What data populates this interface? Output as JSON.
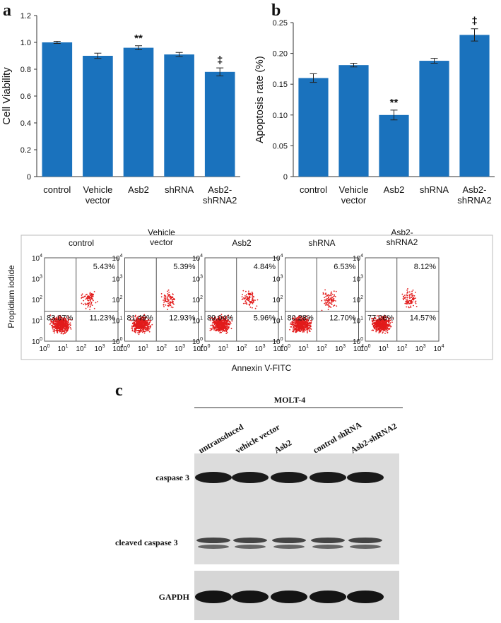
{
  "chart_data": [
    {
      "type": "bar",
      "panel": "a",
      "ylabel": "Cell Viability",
      "color": "#1a72bd",
      "categories": [
        "control",
        "Vehicle\nvector",
        "Asb2",
        "shRNA",
        "Asb2-\nshRNA2"
      ],
      "values": [
        1.0,
        0.9,
        0.96,
        0.91,
        0.78
      ],
      "errors": [
        0.008,
        0.02,
        0.015,
        0.015,
        0.03
      ],
      "annotations": [
        null,
        null,
        "**",
        null,
        "‡"
      ],
      "ylim": [
        0,
        1.2
      ],
      "yticks": [
        0,
        0.2,
        0.4,
        0.6,
        0.8,
        {
          "value": 1,
          "label": "1.0"
        },
        1.2
      ]
    },
    {
      "type": "bar",
      "panel": "b",
      "ylabel": "Apoptosis rate (%)",
      "color": "#1a72bd",
      "categories": [
        "control",
        "Vehicle\nvector",
        "Asb2",
        "shRNA",
        "Asb2-\nshRNA2"
      ],
      "values": [
        0.16,
        0.181,
        0.1,
        0.188,
        0.23
      ],
      "errors": [
        0.007,
        0.003,
        0.008,
        0.004,
        0.01
      ],
      "annotations": [
        null,
        null,
        "**",
        null,
        "‡"
      ],
      "ylim": [
        0,
        0.25
      ],
      "yticks": [
        0,
        0.05,
        {
          "value": 0.1,
          "label": "0.10"
        },
        0.15,
        {
          "value": 0.2,
          "label": "0.20"
        },
        0.25
      ]
    }
  ],
  "flow": {
    "ylabel": "Propidium iodide",
    "xlabel": "Annexin V-FITC",
    "tick_base": "10",
    "tick_exponents": [
      0,
      1,
      2,
      3,
      4
    ],
    "plots": [
      {
        "title": "control",
        "ul": null,
        "ur": "5.43%",
        "ll": "83.07%",
        "lr": "11.23%"
      },
      {
        "title": "Vehicle\nvector",
        "ul": null,
        "ur": "5.39%",
        "ll": "81.49%",
        "lr": "12.93%"
      },
      {
        "title": "Asb2",
        "ul": null,
        "ur": "4.84%",
        "ll": "89.04%",
        "lr": "5.96%"
      },
      {
        "title": "shRNA",
        "ul": null,
        "ur": "6.53%",
        "ll": "80.28%",
        "lr": "12.70%"
      },
      {
        "title": "Asb2-\nshRNA2",
        "ul": null,
        "ur": "8.12%",
        "ll": "77.06%",
        "lr": "14.57%"
      }
    ]
  },
  "blot": {
    "panel": "c",
    "cell_line": "MOLT-4",
    "lanes": [
      "untransduced",
      "vehicle vector",
      "Asb2",
      "control shRNA",
      "Asb2-shRNA2"
    ],
    "rows": [
      "caspase 3",
      "cleaved caspase 3",
      "GAPDH"
    ]
  }
}
